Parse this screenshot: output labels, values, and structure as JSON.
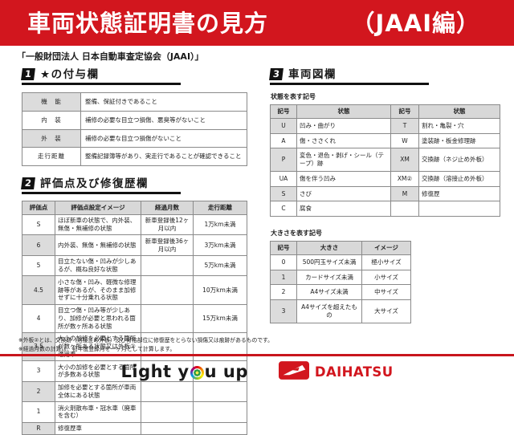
{
  "header": {
    "title": "車両状態証明書の見方",
    "edition": "（JAAI編）"
  },
  "subtitle": "「一般財団法人 日本自動車査定協会（JAAI）」",
  "section1": {
    "number": "1",
    "title": "★の付与欄",
    "rows": [
      {
        "label": "機　能",
        "desc": "整備、保証付きであること"
      },
      {
        "label": "内　装",
        "desc": "補修の必要な目立つ損傷、悪臭等がないこと"
      },
      {
        "label": "外　装",
        "desc": "補修の必要な目立つ損傷がないこと"
      },
      {
        "label": "走行距離",
        "desc": "整備記録簿等があり、実走行であることが確認できること"
      }
    ]
  },
  "section2": {
    "number": "2",
    "title": "評価点及び修復歴欄",
    "headers": [
      "評価点",
      "評価点設定イメージ",
      "経過月数",
      "走行距離"
    ],
    "rows": [
      [
        "S",
        "ほぼ新車の状態で、内外装、無傷・無補修の状態",
        "新車登録後12ヶ月以内",
        "1万km未満"
      ],
      [
        "6",
        "内外装、無傷・無補修の状態",
        "新車登録後36ヶ月以内",
        "3万km未満"
      ],
      [
        "5",
        "目立たない傷・凹みが少しあるが、概ね良好な状態",
        "",
        "5万km未満"
      ],
      [
        "4.5",
        "小さな傷・凹み、軽微な修理跡等があるが、そのまま加修せずに十分乗れる状態",
        "",
        "10万km未満"
      ],
      [
        "4",
        "目立つ傷・凹み等が少しあり、加修が必要と思われる箇所が数ヶ所ある状態",
        "",
        "15万km未満"
      ],
      [
        "3.5",
        "大小の加修を必要とする箇所が数ヶ所ある状態又は外板②適用車",
        "",
        ""
      ],
      [
        "3",
        "大小の加修を必要とする箇所が多数ある状態",
        "",
        ""
      ],
      [
        "2",
        "加修を必要とする箇所が車両全体にある状態",
        "",
        ""
      ],
      [
        "1",
        "消火剤散布車・冠水車（廃車を含む）",
        "",
        ""
      ],
      [
        "R",
        "修復歴車",
        "",
        ""
      ]
    ]
  },
  "section3": {
    "number": "3",
    "title": "車両図欄",
    "state_table": {
      "caption": "状態を表す記号",
      "headers": [
        "記号",
        "状態",
        "記号",
        "状態"
      ],
      "rows": [
        [
          "U",
          "凹み・曲がり",
          "T",
          "割れ・亀裂・穴"
        ],
        [
          "A",
          "傷・ささくれ",
          "W",
          "塗装跡・板金修理跡"
        ],
        [
          "P",
          "変色・退色・剥げ・シール（テープ）跡",
          "XM",
          "交換跡（ネジ止め外板）"
        ],
        [
          "UA",
          "傷を伴う凹み",
          "XM②",
          "交換跡（溶接止め外板）"
        ],
        [
          "S",
          "さび",
          "M",
          "修復歴"
        ],
        [
          "C",
          "腐食",
          "",
          ""
        ]
      ]
    },
    "size_table": {
      "caption": "大きさを表す記号",
      "headers": [
        "記号",
        "大きさ",
        "イメージ"
      ],
      "rows": [
        [
          "0",
          "500円玉サイズ未満",
          "極小サイズ"
        ],
        [
          "1",
          "カードサイズ未満",
          "小サイズ"
        ],
        [
          "2",
          "A4サイズ未満",
          "中サイズ"
        ],
        [
          "3",
          "A4サイズを超えたもの",
          "大サイズ"
        ]
      ]
    }
  },
  "footnotes": [
    "※外板②とは、交換跡（溶接止め外板）及び骨格部位に修復歴をとらない損傷又は痕跡があるものです。",
    "※経過月数の計算は、初年度登録月を一ヶ月として計算します。"
  ],
  "footer": {
    "slogan_left": "Light y",
    "slogan_right": "u up",
    "brand": "DAIHATSU"
  },
  "colors": {
    "banner_red": "#d2161e",
    "daihatsu_red": "#d2161e",
    "table_header_gray": "#d8d8d8",
    "cell_gray": "#dcdcdc",
    "text_black": "#1a1a1a"
  }
}
